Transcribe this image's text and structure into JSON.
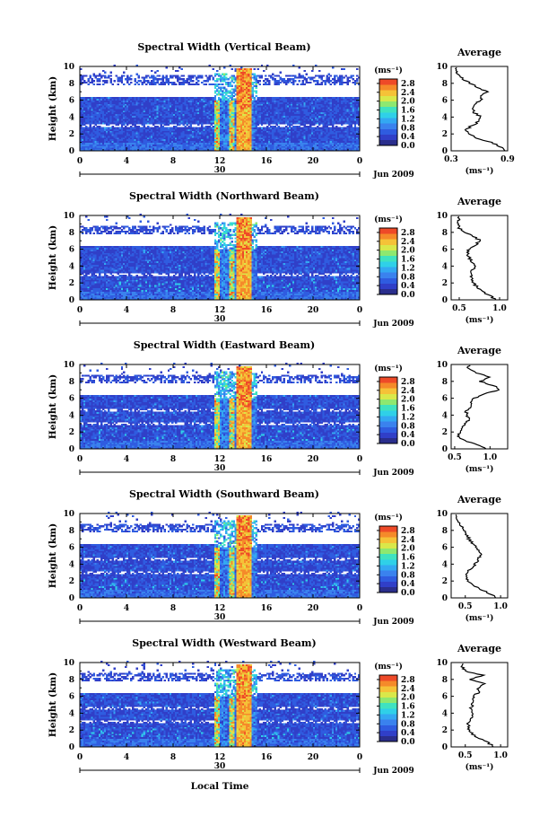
{
  "figure": {
    "xlabel": "Local Time",
    "xticks": [
      "0",
      "4",
      "8",
      "12",
      "16",
      "20",
      "0"
    ],
    "x_range": [
      0,
      24
    ],
    "date_tick_label": "30",
    "date_label": "Jun 2009",
    "ylabel": "Height (km)",
    "yticks": [
      "0",
      "2",
      "4",
      "6",
      "8",
      "10"
    ],
    "y_range": [
      0,
      10
    ],
    "colorbar": {
      "unit": "(ms⁻¹)",
      "ticks": [
        "0.0",
        "0.4",
        "0.8",
        "1.2",
        "1.6",
        "2.0",
        "2.4",
        "2.8"
      ],
      "range": [
        0,
        3.0
      ],
      "colors": [
        "#2a2e8c",
        "#303fc8",
        "#2f5ce0",
        "#3a82ee",
        "#33a8f2",
        "#2fd0e8",
        "#3fe2c0",
        "#8ee870",
        "#d9e84a",
        "#f5c238",
        "#f58a2a",
        "#ee4a28"
      ]
    },
    "avg_title": "Average",
    "avg_xlabel": "(ms⁻¹)"
  },
  "chart_data": [
    {
      "type": "heatmap",
      "title": "Spectral Width (Vertical Beam)",
      "x_unit": "local time (h)",
      "y_unit": "height (km)",
      "value_unit": "ms-1",
      "description_values": {
        "background_low_levels": 0.5,
        "convective_core_hours": [
          12,
          15
        ],
        "core_values_max": 3.0
      },
      "average_profile": {
        "xticks": [
          "0.3",
          "0.9"
        ],
        "xlim": [
          0.3,
          0.9
        ],
        "height": [
          0,
          0.5,
          1,
          1.5,
          2,
          2.5,
          3,
          3.5,
          4,
          4.5,
          5,
          5.5,
          6,
          6.5,
          7,
          7.5,
          8,
          8.5,
          9,
          9.5
        ],
        "value": [
          0.88,
          0.82,
          0.72,
          0.58,
          0.5,
          0.46,
          0.52,
          0.6,
          0.62,
          0.55,
          0.52,
          0.55,
          0.62,
          0.6,
          0.68,
          0.58,
          0.5,
          0.42,
          0.38,
          0.36
        ]
      }
    },
    {
      "type": "heatmap",
      "title": "Spectral Width (Northward Beam)",
      "x_unit": "local time (h)",
      "y_unit": "height (km)",
      "value_unit": "ms-1",
      "average_profile": {
        "xticks": [
          "0.5",
          "1.0"
        ],
        "xlim": [
          0.4,
          1.1
        ],
        "height": [
          0,
          0.5,
          1,
          1.5,
          2,
          2.5,
          3,
          3.5,
          4,
          4.5,
          5,
          5.5,
          6,
          6.5,
          7,
          7.5,
          8,
          8.5,
          9,
          9.5
        ],
        "value": [
          0.95,
          0.88,
          0.78,
          0.72,
          0.68,
          0.66,
          0.64,
          0.66,
          0.7,
          0.66,
          0.62,
          0.6,
          0.62,
          0.7,
          0.76,
          0.68,
          0.58,
          0.5,
          0.48,
          0.5
        ]
      }
    },
    {
      "type": "heatmap",
      "title": "Spectral Width (Eastward Beam)",
      "x_unit": "local time (h)",
      "y_unit": "height (km)",
      "value_unit": "ms-1",
      "average_profile": {
        "xticks": [
          "0.5",
          "1.0"
        ],
        "xlim": [
          0.45,
          1.25
        ],
        "height": [
          0,
          0.5,
          1,
          1.5,
          2,
          2.5,
          3,
          3.5,
          4,
          4.5,
          5,
          5.5,
          6,
          6.5,
          7,
          7.5,
          8,
          8.5,
          9,
          9.5
        ],
        "value": [
          0.95,
          0.8,
          0.64,
          0.55,
          0.58,
          0.62,
          0.66,
          0.7,
          0.68,
          0.66,
          0.72,
          0.74,
          0.78,
          0.9,
          1.15,
          1.05,
          0.86,
          1.0,
          0.8,
          0.7
        ]
      }
    },
    {
      "type": "heatmap",
      "title": "Spectral Width (Southward Beam)",
      "x_unit": "local time (h)",
      "y_unit": "height (km)",
      "value_unit": "ms-1",
      "average_profile": {
        "xticks": [
          "0.5",
          "1.0"
        ],
        "xlim": [
          0.3,
          1.1
        ],
        "height": [
          0,
          0.5,
          1,
          1.5,
          2,
          2.5,
          3,
          3.5,
          4,
          4.5,
          5,
          5.5,
          6,
          6.5,
          7,
          7.5,
          8,
          8.5,
          9,
          9.5
        ],
        "value": [
          0.95,
          0.85,
          0.72,
          0.6,
          0.55,
          0.5,
          0.52,
          0.58,
          0.64,
          0.68,
          0.72,
          0.7,
          0.66,
          0.6,
          0.55,
          0.52,
          0.48,
          0.44,
          0.4,
          0.36
        ]
      }
    },
    {
      "type": "heatmap",
      "title": "Spectral Width (Westward Beam)",
      "x_unit": "local time (h)",
      "y_unit": "height (km)",
      "value_unit": "ms-1",
      "average_profile": {
        "xticks": [
          "0.5",
          "1.0"
        ],
        "xlim": [
          0.3,
          1.1
        ],
        "height": [
          0,
          0.5,
          1,
          1.5,
          2,
          2.5,
          3,
          3.5,
          4,
          4.5,
          5,
          5.5,
          6,
          6.5,
          7,
          7.5,
          8,
          8.5,
          9,
          9.5
        ],
        "value": [
          0.92,
          0.82,
          0.7,
          0.6,
          0.56,
          0.54,
          0.55,
          0.58,
          0.6,
          0.58,
          0.6,
          0.62,
          0.6,
          0.7,
          0.68,
          0.78,
          0.55,
          0.75,
          0.5,
          0.45
        ]
      }
    }
  ]
}
